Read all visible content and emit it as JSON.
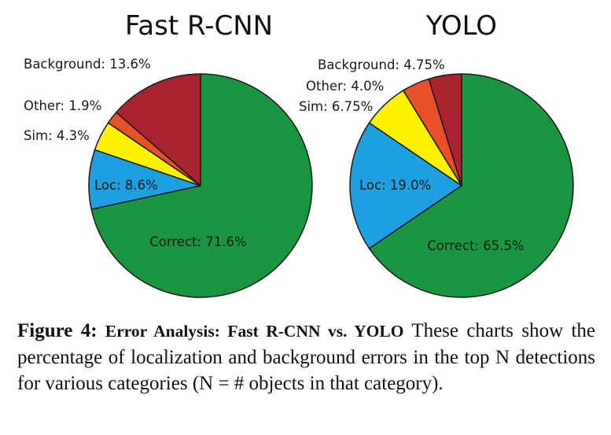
{
  "chart_data": [
    {
      "type": "pie",
      "title": "Fast R-CNN",
      "slices": [
        {
          "label": "Correct: 71.6%",
          "name": "Correct",
          "value": 71.6,
          "color": "#1a9641"
        },
        {
          "label": "Loc: 8.6%",
          "name": "Loc",
          "value": 8.6,
          "color": "#1e9fe0"
        },
        {
          "label": "Sim: 4.3%",
          "name": "Sim",
          "value": 4.3,
          "color": "#fff200"
        },
        {
          "label": "Other: 1.9%",
          "name": "Other",
          "value": 1.9,
          "color": "#e8502a"
        },
        {
          "label": "Background: 13.6%",
          "name": "Background",
          "value": 13.6,
          "color": "#a8222f"
        }
      ]
    },
    {
      "type": "pie",
      "title": "YOLO",
      "slices": [
        {
          "label": "Correct: 65.5%",
          "name": "Correct",
          "value": 65.5,
          "color": "#1a9641"
        },
        {
          "label": "Loc: 19.0%",
          "name": "Loc",
          "value": 19.0,
          "color": "#1e9fe0"
        },
        {
          "label": "Sim: 6.75%",
          "name": "Sim",
          "value": 6.75,
          "color": "#fff200"
        },
        {
          "label": "Other: 4.0%",
          "name": "Other",
          "value": 4.0,
          "color": "#e8502a"
        },
        {
          "label": "Background: 4.75%",
          "name": "Background",
          "value": 4.75,
          "color": "#a8222f"
        }
      ]
    }
  ],
  "caption": {
    "label": "Figure 4:",
    "title": "Error Analysis: Fast R-CNN vs. YOLO",
    "text": "These charts show the percentage of localization and background errors in the top N detections for various categories (N = # objects in that category)."
  }
}
